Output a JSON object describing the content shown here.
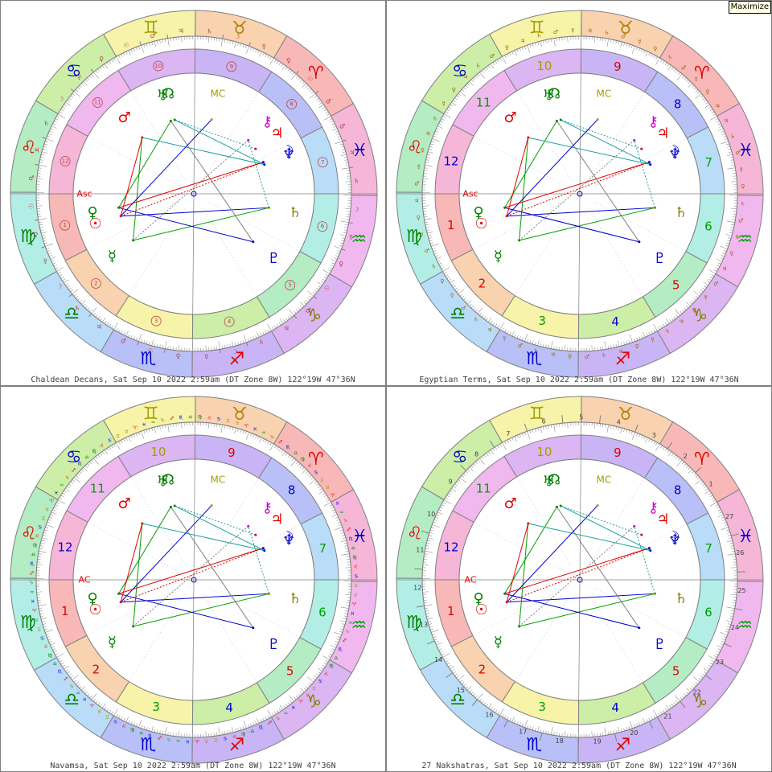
{
  "maximize_label": "Maximize",
  "sign_glyphs": [
    "♈",
    "♉",
    "♊",
    "♋",
    "♌",
    "♍",
    "♎",
    "♏",
    "♐",
    "♑",
    "♒",
    "♓"
  ],
  "sign_colors": [
    "#f9b8b8",
    "#f9d2b0",
    "#f7f3a8",
    "#cdeea6",
    "#b4ecc4",
    "#b2eee6",
    "#b9dcf9",
    "#b9c0f7",
    "#c9b5f5",
    "#dcb5f3",
    "#f1b8ef",
    "#f6b6d8"
  ],
  "sign_text_colors": [
    "#e00000",
    "#b08000",
    "#a0a000",
    "#0000d0",
    "#e00000",
    "#008000",
    "#008000",
    "#0000d0",
    "#e00000",
    "#808000",
    "#00a000",
    "#0000d0"
  ],
  "asc_degree": 150.5,
  "houses": [
    {
      "n": "1",
      "cusp": 150.5
    },
    {
      "n": "2",
      "cusp": 178
    },
    {
      "n": "3",
      "cusp": 208
    },
    {
      "n": "4",
      "cusp": 240
    },
    {
      "n": "5",
      "cusp": 272
    },
    {
      "n": "6",
      "cusp": 302
    },
    {
      "n": "7",
      "cusp": 330.5
    },
    {
      "n": "8",
      "cusp": 358
    },
    {
      "n": "9",
      "cusp": 28
    },
    {
      "n": "10",
      "cusp": 60
    },
    {
      "n": "11",
      "cusp": 92
    },
    {
      "n": "12",
      "cusp": 122
    }
  ],
  "house_colors": [
    "#f9b8b8",
    "#f9d2b0",
    "#f7f3a8",
    "#cdeea6",
    "#b4ecc4",
    "#b2eee6",
    "#b9dcf9",
    "#b9c0f7",
    "#c9b5f5",
    "#dcb5f3",
    "#f1b8ef",
    "#f6b6d8"
  ],
  "planets": [
    {
      "g": "☉",
      "lon": 167.5,
      "c": "#e00000"
    },
    {
      "g": "☽",
      "lon": 355,
      "c": "#0000d0"
    },
    {
      "g": "☿",
      "lon": 188,
      "c": "#008000"
    },
    {
      "g": "♀",
      "lon": 161,
      "c": "#008000"
    },
    {
      "g": "♂",
      "lon": 103,
      "c": "#e00000"
    },
    {
      "g": "♃",
      "lon": 6.5,
      "c": "#e00000"
    },
    {
      "g": "♄",
      "lon": 320,
      "c": "#808000"
    },
    {
      "g": "♅",
      "lon": 78,
      "c": "#008000"
    },
    {
      "g": "♆",
      "lon": 353,
      "c": "#0000d0"
    },
    {
      "g": "♇",
      "lon": 291.5,
      "c": "#0000d0"
    },
    {
      "g": "☊",
      "lon": 75,
      "c": "#008000"
    },
    {
      "g": "⚷",
      "lon": 15,
      "c": "#d000d0"
    },
    {
      "g": "MC",
      "lon": 47,
      "c": "#a0a000"
    }
  ],
  "aspects": [
    {
      "a": 0,
      "b": 1,
      "c": "#e00000"
    },
    {
      "a": 0,
      "b": 6,
      "c": "#0000d0"
    },
    {
      "a": 2,
      "b": 4,
      "c": "#00a000"
    },
    {
      "a": 3,
      "b": 7,
      "c": "#00a000"
    },
    {
      "a": 4,
      "b": 8,
      "c": "#20a0a0"
    },
    {
      "a": 5,
      "b": 10,
      "c": "#20a0a0"
    },
    {
      "a": 6,
      "b": 11,
      "c": "#20a0a0"
    },
    {
      "a": 7,
      "b": 9,
      "c": "#808080"
    },
    {
      "a": 1,
      "b": 3,
      "c": "#e00000"
    },
    {
      "a": 2,
      "b": 6,
      "c": "#00a000"
    },
    {
      "a": 0,
      "b": 12,
      "c": "#0000d0"
    },
    {
      "a": 9,
      "b": 3,
      "c": "#0000d0"
    },
    {
      "a": 4,
      "b": 0,
      "c": "#e00000"
    },
    {
      "a": 8,
      "b": 10,
      "c": "#20a0a0"
    },
    {
      "a": 11,
      "b": 2,
      "c": "#808080"
    }
  ],
  "panels": [
    {
      "id": "decans",
      "caption": "Chaldean Decans, Sat Sep 10 2022  2:59am (DT Zone 8W) 122°19W 47°36N",
      "style": "decans",
      "house_style": "circled",
      "asc_label": "Asc"
    },
    {
      "id": "terms",
      "caption": "Egyptian Terms, Sat Sep 10 2022  2:59am (DT Zone 8W) 122°19W 47°36N",
      "style": "terms",
      "house_style": "plain",
      "asc_label": "Asc"
    },
    {
      "id": "navamsa",
      "caption": "Navamsa, Sat Sep 10 2022  2:59am (DT Zone 8W) 122°19W 47°36N",
      "style": "navamsa",
      "house_style": "plain",
      "asc_label": "AC"
    },
    {
      "id": "nakshatras",
      "caption": "27 Nakshatras, Sat Sep 10 2022  2:59am (DT Zone 8W) 122°19W 47°36N",
      "style": "nakshatras",
      "house_style": "plain",
      "asc_label": "AC"
    }
  ],
  "decan_rulers": [
    "♂",
    "☉",
    "♀",
    "☿",
    "☽",
    "♄",
    "♃",
    "♂",
    "☉",
    "♀",
    "☿",
    "☽",
    "♄",
    "♃",
    "♂",
    "☉",
    "♀",
    "☿",
    "☽",
    "♄",
    "♃",
    "♂",
    "☉",
    "♀",
    "☿",
    "☽",
    "♄",
    "♃",
    "♂",
    "☉",
    "♀",
    "☿",
    "☽",
    "♄",
    "♃",
    "♂"
  ],
  "term_rulers": [
    "♃",
    "♀",
    "☿",
    "♂",
    "♄"
  ],
  "nakshatra_numbers": [
    "1",
    "2",
    "3",
    "4",
    "5",
    "6",
    "7",
    "8",
    "9",
    "10",
    "11",
    "12",
    "13",
    "14",
    "15",
    "16",
    "17",
    "18",
    "19",
    "20",
    "21",
    "22",
    "23",
    "24",
    "25",
    "26",
    "27"
  ]
}
